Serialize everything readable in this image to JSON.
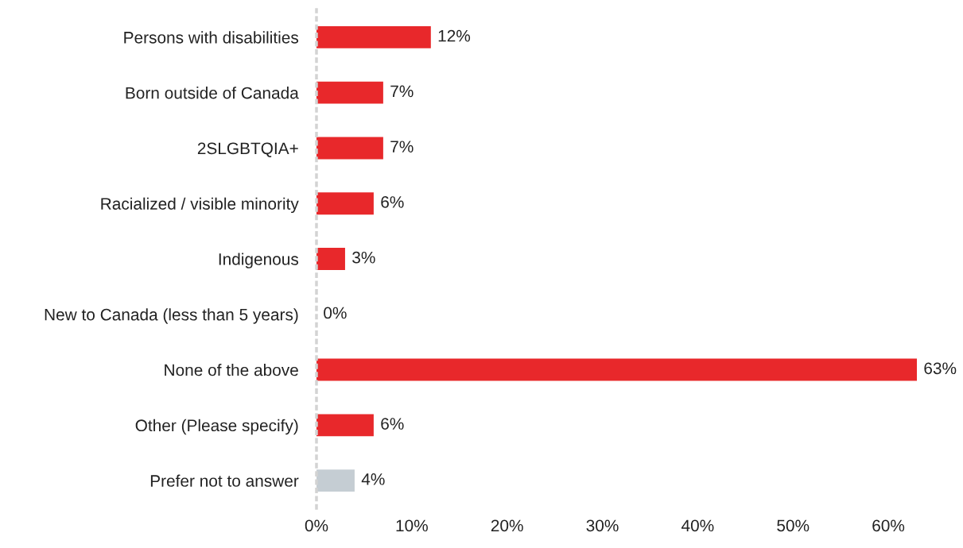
{
  "chart_data": {
    "type": "bar",
    "orientation": "horizontal",
    "categories": [
      "Persons with disabilities",
      "Born outside of Canada",
      "2SLGBTQIA+",
      "Racialized / visible minority",
      "Indigenous",
      "New to Canada (less than 5 years)",
      "None of the above",
      "Other (Please specify)",
      "Prefer not to answer"
    ],
    "values": [
      12,
      7,
      7,
      6,
      3,
      0,
      63,
      6,
      4
    ],
    "colors": [
      "#e8282b",
      "#e8282b",
      "#e8282b",
      "#e8282b",
      "#e8282b",
      "#e8282b",
      "#e8282b",
      "#e8282b",
      "#c5cdd3"
    ],
    "value_labels": [
      "12%",
      "7%",
      "7%",
      "6%",
      "3%",
      "0%",
      "63%",
      "6%",
      "4%"
    ],
    "xlim": [
      0,
      63
    ],
    "xticks": [
      {
        "value": 0,
        "label": "0%"
      },
      {
        "value": 10,
        "label": "10%"
      },
      {
        "value": 20,
        "label": "20%"
      },
      {
        "value": 30,
        "label": "30%"
      },
      {
        "value": 40,
        "label": "40%"
      },
      {
        "value": 50,
        "label": "50%"
      },
      {
        "value": 60,
        "label": "60%"
      }
    ],
    "grid": false,
    "legend": false
  }
}
